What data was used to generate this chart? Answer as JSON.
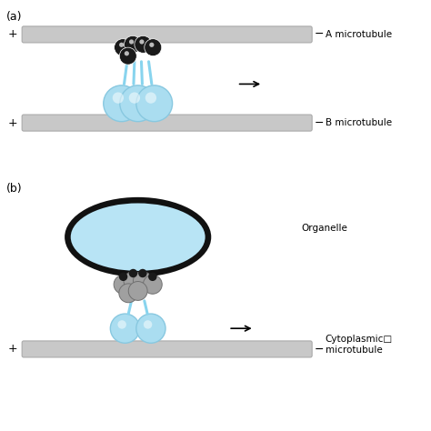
{
  "bg_color": "#ffffff",
  "microtubule_color": "#c8c8c8",
  "microtubule_edge": "#aaaaaa",
  "light_blue": "#aaddf0",
  "light_blue_edge": "#88c8e0",
  "black_head": "#1a1a1a",
  "gray_head": "#a0a0a0",
  "gray_head_edge": "#707070",
  "organelle_fill": "#b8e4f5",
  "organelle_edge": "#111111",
  "label_a": "(a)",
  "label_b": "(b)",
  "text_a_microtubule": "A microtubule",
  "text_b_microtubule": "B microtubule",
  "text_organelle": "Organelle",
  "text_cytoplasmic": "Cytoplasmic□\nmicrotubule",
  "plus_sign": "+",
  "minus_sign": "−",
  "figsize": [
    4.74,
    4.74
  ],
  "dpi": 100
}
